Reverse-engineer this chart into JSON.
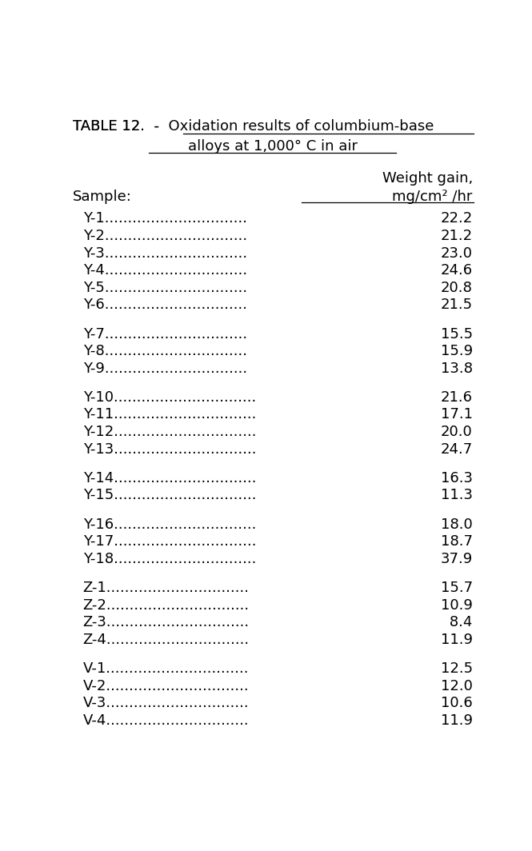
{
  "title_line1": "TABLE 12.  - Oxidation results of columbium-base",
  "title_line2": "alloys at 1,000° C in air",
  "col_header1": "Weight gain,",
  "col_header2": "mg/cm² /hr",
  "row_label": "Sample:",
  "rows": [
    {
      "sample": "Y-1",
      "dots": "...............................",
      "value": "22.2",
      "group": 1
    },
    {
      "sample": "Y-2",
      "dots": "...............................",
      "value": "21.2",
      "group": 1
    },
    {
      "sample": "Y-3",
      "dots": "...............................",
      "value": "23.0",
      "group": 1
    },
    {
      "sample": "Y-4",
      "dots": "...............................",
      "value": "24.6",
      "group": 1
    },
    {
      "sample": "Y-5",
      "dots": "...............................",
      "value": "20.8",
      "group": 1
    },
    {
      "sample": "Y-6",
      "dots": "...............................",
      "value": "21.5",
      "group": 1
    },
    {
      "sample": "Y-7",
      "dots": "...............................",
      "value": "15.5",
      "group": 2
    },
    {
      "sample": "Y-8",
      "dots": "...............................",
      "value": "15.9",
      "group": 2
    },
    {
      "sample": "Y-9",
      "dots": "...............................",
      "value": "13.8",
      "group": 2
    },
    {
      "sample": "Y-10",
      "dots": "...............................",
      "value": "21.6",
      "group": 3
    },
    {
      "sample": "Y-11",
      "dots": "...............................",
      "value": "17.1",
      "group": 3
    },
    {
      "sample": "Y-12",
      "dots": "...............................",
      "value": "20.0",
      "group": 3
    },
    {
      "sample": "Y-13",
      "dots": "...............................",
      "value": "24.7",
      "group": 3
    },
    {
      "sample": "Y-14",
      "dots": "...............................",
      "value": "16.3",
      "group": 4
    },
    {
      "sample": "Y-15",
      "dots": "...............................",
      "value": "11.3",
      "group": 4
    },
    {
      "sample": "Y-16",
      "dots": "...............................",
      "value": "18.0",
      "group": 5
    },
    {
      "sample": "Y-17",
      "dots": "...............................",
      "value": "18.7",
      "group": 5
    },
    {
      "sample": "Y-18",
      "dots": "...............................",
      "value": "37.9",
      "group": 5
    },
    {
      "sample": "Z-1",
      "dots": "...............................",
      "value": "15.7",
      "group": 6
    },
    {
      "sample": "Z-2",
      "dots": "...............................",
      "value": "10.9",
      "group": 6
    },
    {
      "sample": "Z-3",
      "dots": "...............................",
      "value": " 8.4",
      "group": 6
    },
    {
      "sample": "Z-4",
      "dots": "...............................",
      "value": "11.9",
      "group": 6
    },
    {
      "sample": "V-1",
      "dots": "...............................",
      "value": "12.5",
      "group": 7
    },
    {
      "sample": "V-2",
      "dots": "...............................",
      "value": "12.0",
      "group": 7
    },
    {
      "sample": "V-3",
      "dots": "...............................",
      "value": "10.6",
      "group": 7
    },
    {
      "sample": "V-4",
      "dots": "...............................",
      "value": "11.9",
      "group": 7
    }
  ],
  "font_family": "Courier New",
  "font_size": 13.0,
  "bg_color": "#ffffff",
  "text_color": "#000000",
  "fig_width": 6.65,
  "fig_height": 10.64,
  "dpi": 100
}
